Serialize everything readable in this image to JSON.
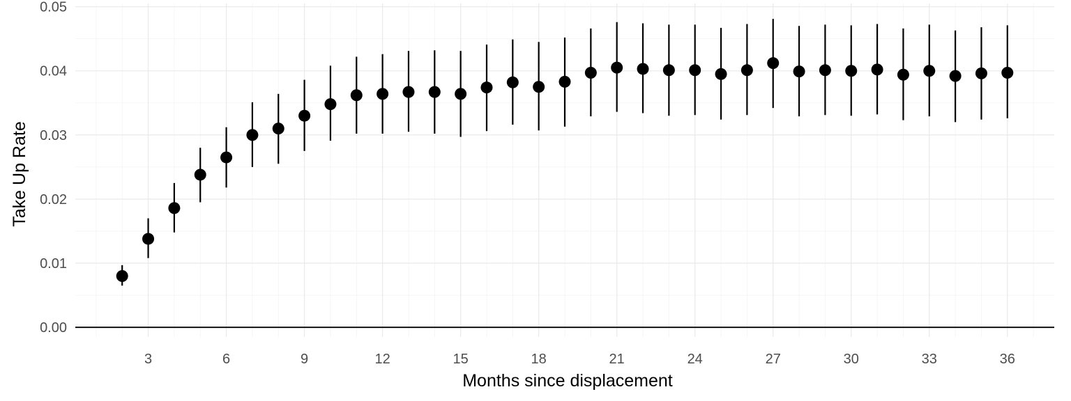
{
  "chart_data": {
    "type": "scatter",
    "title": "",
    "xlabel": "Months since displacement",
    "ylabel": "Take Up Rate",
    "xlim": [
      0.2,
      37.8
    ],
    "ylim": [
      -0.0015,
      0.0505
    ],
    "x_ticks": [
      3,
      6,
      9,
      12,
      15,
      18,
      21,
      24,
      27,
      30,
      33,
      36
    ],
    "x_tick_labels": [
      "3",
      "6",
      "9",
      "12",
      "15",
      "18",
      "21",
      "24",
      "27",
      "30",
      "33",
      "36"
    ],
    "y_ticks": [
      0,
      0.01,
      0.02,
      0.03,
      0.04,
      0.05
    ],
    "y_tick_labels": [
      "0.00",
      "0.01",
      "0.02",
      "0.03",
      "0.04",
      "0.05"
    ],
    "grid": true,
    "reference_line_y": 0,
    "series": [
      {
        "points": [
          {
            "x": 2,
            "y": 0.008,
            "low": 0.0065,
            "high": 0.0097
          },
          {
            "x": 3,
            "y": 0.0138,
            "low": 0.0108,
            "high": 0.017
          },
          {
            "x": 4,
            "y": 0.0186,
            "low": 0.0148,
            "high": 0.0225
          },
          {
            "x": 5,
            "y": 0.0238,
            "low": 0.0195,
            "high": 0.028
          },
          {
            "x": 6,
            "y": 0.0265,
            "low": 0.0218,
            "high": 0.0312
          },
          {
            "x": 7,
            "y": 0.03,
            "low": 0.025,
            "high": 0.0351
          },
          {
            "x": 8,
            "y": 0.031,
            "low": 0.0255,
            "high": 0.0364
          },
          {
            "x": 9,
            "y": 0.033,
            "low": 0.0275,
            "high": 0.0386
          },
          {
            "x": 10,
            "y": 0.0348,
            "low": 0.0291,
            "high": 0.0408
          },
          {
            "x": 11,
            "y": 0.0362,
            "low": 0.0302,
            "high": 0.0422
          },
          {
            "x": 12,
            "y": 0.0364,
            "low": 0.0302,
            "high": 0.0426
          },
          {
            "x": 13,
            "y": 0.0367,
            "low": 0.0305,
            "high": 0.0431
          },
          {
            "x": 14,
            "y": 0.0367,
            "low": 0.0302,
            "high": 0.0432
          },
          {
            "x": 15,
            "y": 0.0364,
            "low": 0.0297,
            "high": 0.0431
          },
          {
            "x": 16,
            "y": 0.0374,
            "low": 0.0306,
            "high": 0.0441
          },
          {
            "x": 17,
            "y": 0.0382,
            "low": 0.0316,
            "high": 0.0449
          },
          {
            "x": 18,
            "y": 0.0375,
            "low": 0.0307,
            "high": 0.0445
          },
          {
            "x": 19,
            "y": 0.0383,
            "low": 0.0313,
            "high": 0.0452
          },
          {
            "x": 20,
            "y": 0.0397,
            "low": 0.0329,
            "high": 0.0466
          },
          {
            "x": 21,
            "y": 0.0405,
            "low": 0.0336,
            "high": 0.0476
          },
          {
            "x": 22,
            "y": 0.0403,
            "low": 0.0334,
            "high": 0.0474
          },
          {
            "x": 23,
            "y": 0.0401,
            "low": 0.033,
            "high": 0.0472
          },
          {
            "x": 24,
            "y": 0.0401,
            "low": 0.0331,
            "high": 0.0472
          },
          {
            "x": 25,
            "y": 0.0395,
            "low": 0.0324,
            "high": 0.0467
          },
          {
            "x": 26,
            "y": 0.0401,
            "low": 0.0331,
            "high": 0.0473
          },
          {
            "x": 27,
            "y": 0.0412,
            "low": 0.0342,
            "high": 0.0481
          },
          {
            "x": 28,
            "y": 0.0399,
            "low": 0.0329,
            "high": 0.047
          },
          {
            "x": 29,
            "y": 0.0401,
            "low": 0.0331,
            "high": 0.0472
          },
          {
            "x": 30,
            "y": 0.04,
            "low": 0.033,
            "high": 0.0471
          },
          {
            "x": 31,
            "y": 0.0402,
            "low": 0.0332,
            "high": 0.0473
          },
          {
            "x": 32,
            "y": 0.0394,
            "low": 0.0323,
            "high": 0.0466
          },
          {
            "x": 33,
            "y": 0.04,
            "low": 0.0329,
            "high": 0.0472
          },
          {
            "x": 34,
            "y": 0.0392,
            "low": 0.032,
            "high": 0.0463
          },
          {
            "x": 35,
            "y": 0.0396,
            "low": 0.0324,
            "high": 0.0468
          },
          {
            "x": 36,
            "y": 0.0397,
            "low": 0.0326,
            "high": 0.0471
          }
        ]
      }
    ]
  }
}
